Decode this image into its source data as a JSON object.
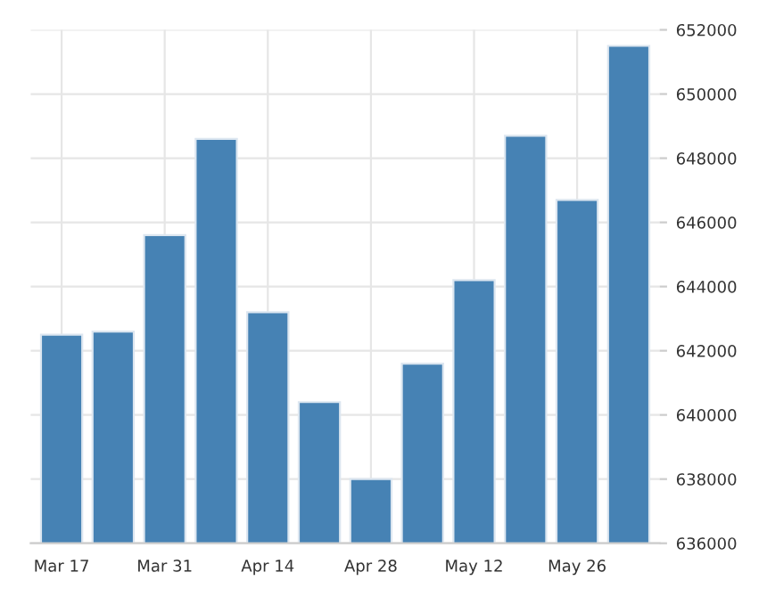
{
  "chart_data": {
    "type": "bar",
    "categories": [
      "Mar 17",
      null,
      "Mar 31",
      null,
      "Apr 14",
      null,
      "Apr 28",
      null,
      "May 12",
      null,
      "May 26",
      null
    ],
    "values": [
      642500,
      642600,
      645600,
      648600,
      643200,
      640400,
      638000,
      641600,
      644200,
      648700,
      646700,
      651500
    ],
    "color": "#4682b4",
    "ylim": [
      636000,
      652000
    ],
    "yticks": [
      636000,
      638000,
      640000,
      642000,
      644000,
      646000,
      648000,
      650000,
      652000
    ],
    "grid": true
  }
}
